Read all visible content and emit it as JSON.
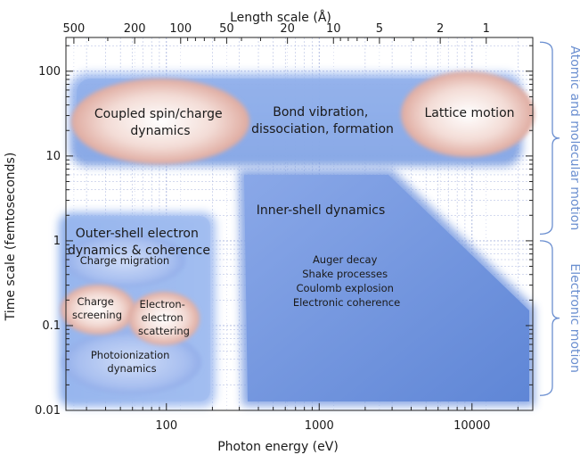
{
  "chart_data": {
    "type": "diagram",
    "x_axis": {
      "label": "Photon energy (eV)",
      "scale": "log",
      "range_ev": [
        22,
        25000
      ],
      "ticks": [
        {
          "value": 100,
          "label": "100"
        },
        {
          "value": 1000,
          "label": "1000"
        },
        {
          "value": 10000,
          "label": "10000"
        }
      ]
    },
    "top_axis": {
      "label": "Length scale (Å)",
      "scale": "log",
      "ticks": [
        {
          "value": 500,
          "label": "500"
        },
        {
          "value": 200,
          "label": "200"
        },
        {
          "value": 100,
          "label": "100"
        },
        {
          "value": 50,
          "label": "50"
        },
        {
          "value": 20,
          "label": "20"
        },
        {
          "value": 10,
          "label": "10"
        },
        {
          "value": 5,
          "label": "5"
        },
        {
          "value": 2,
          "label": "2"
        },
        {
          "value": 1,
          "label": "1"
        }
      ]
    },
    "y_axis": {
      "label": "Time scale (femtoseconds)",
      "scale": "log",
      "range_fs": [
        0.01,
        250
      ],
      "ticks": [
        {
          "value": 0.01,
          "label": "0.01"
        },
        {
          "value": 0.1,
          "label": "0.1"
        },
        {
          "value": 1,
          "label": "1"
        },
        {
          "value": 10,
          "label": "10"
        },
        {
          "value": 100,
          "label": "100"
        }
      ]
    },
    "right_brackets": [
      {
        "label": "Atomic and molecular motion",
        "from_fs": 1.2,
        "to_fs": 220
      },
      {
        "label": "Electronic motion",
        "from_fs": 0.015,
        "to_fs": 1
      }
    ],
    "regions": {
      "atomic": {
        "label_lines": [
          "Bond vibration,",
          "dissociation, formation"
        ],
        "ellipses": [
          {
            "id": "spin",
            "label_lines": [
              "Coupled spin/charge",
              "dynamics"
            ]
          },
          {
            "id": "lattice",
            "label_lines": [
              "Lattice motion"
            ]
          }
        ]
      },
      "outer_shell": {
        "label_lines": [
          "Outer-shell electron",
          "dynamics & coherence"
        ],
        "ellipses": [
          {
            "id": "migration",
            "label_lines": [
              "Charge migration"
            ]
          },
          {
            "id": "screening",
            "label_lines": [
              "Charge",
              "screening"
            ]
          },
          {
            "id": "scattering",
            "label_lines": [
              "Electron-",
              "electron",
              "scattering"
            ]
          },
          {
            "id": "photoionization",
            "label_lines": [
              "Photoionization",
              "dynamics"
            ]
          }
        ]
      },
      "inner_shell": {
        "label_lines": [
          "Inner-shell dynamics"
        ],
        "processes": [
          "Auger decay",
          "Shake processes",
          "Coulomb explosion",
          "Electronic coherence"
        ]
      }
    },
    "colors": {
      "region_fill": "#7c9ee0",
      "inner_region": "#6f93db",
      "ellipse_fill": "#e7bcb3",
      "grid": "#a9b5df",
      "bracket": "#6b8fd0",
      "axis": "#222222"
    }
  }
}
